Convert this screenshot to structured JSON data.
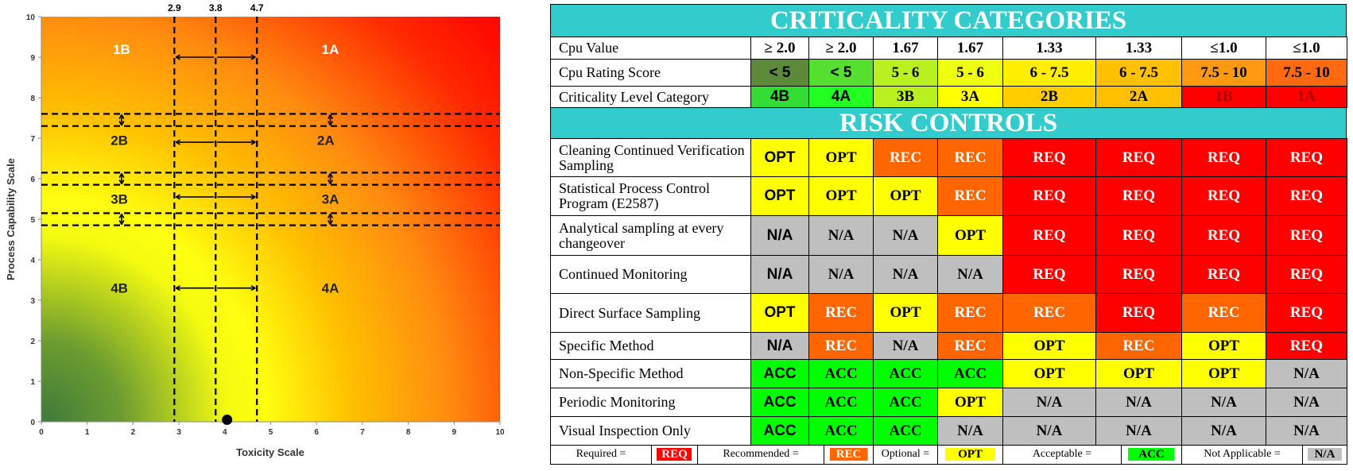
{
  "chart_data": {
    "type": "region",
    "xlabel": "Toxicity Scale",
    "ylabel": "Process Capability Scale",
    "xlim": [
      0,
      10
    ],
    "ylim": [
      0,
      10
    ],
    "xticks": [
      0,
      1,
      2,
      3,
      4,
      5,
      6,
      7,
      8,
      9,
      10
    ],
    "yticks": [
      0,
      1,
      2,
      3,
      4,
      5,
      6,
      7,
      8,
      9,
      10
    ],
    "vlines": [
      2.9,
      3.8,
      4.7
    ],
    "hlines": [
      7.6,
      7.3,
      6.15,
      5.85,
      5.15,
      4.85
    ],
    "regions": [
      "1B",
      "1A",
      "2B",
      "2A",
      "3B",
      "3A",
      "4B",
      "4A"
    ],
    "points": {
      "x": [
        4.05
      ],
      "y": [
        0.05
      ],
      "color": "#000000"
    }
  },
  "table": {
    "title": "CRITICALITY CATEGORIES",
    "header_rows": [
      {
        "label": "Cpu Value",
        "cells": [
          "≥ 2.0",
          "≥ 2.0",
          "1.67",
          "1.67",
          "1.33",
          "1.33",
          "≤1.0",
          "≤1.0"
        ]
      },
      {
        "label": "Cpu Rating Score",
        "cells": [
          "< 5",
          "< 5",
          "5 - 6",
          "5 - 6",
          "6 - 7.5",
          "6 - 7.5",
          "7.5 - 10",
          "7.5 - 10"
        ],
        "colors": [
          "#5c8a3a",
          "#55e030",
          "#b8f020",
          "#f0ff10",
          "#ffee00",
          "#ffc000",
          "#ff9a10",
          "#ff6a10"
        ]
      },
      {
        "label": "Criticality Level Category",
        "cells": [
          "4B",
          "4A",
          "3B",
          "3A",
          "2B",
          "2A",
          "1B",
          "1A"
        ],
        "colors": [
          "#33dd33",
          "#22ff22",
          "#b8f020",
          "#ffff00",
          "#ffcc00",
          "#ffc000",
          "#ff0000",
          "#ff0000"
        ]
      }
    ],
    "section": "RISK CONTROLS",
    "rows": [
      {
        "label": "Cleaning Continued Verification Sampling",
        "cells": [
          "OPT",
          "OPT",
          "REC",
          "REC",
          "REQ",
          "REQ",
          "REQ",
          "REQ"
        ]
      },
      {
        "label": "Statistical Process Control Program (E2587)",
        "cells": [
          "OPT",
          "OPT",
          "OPT",
          "REC",
          "REQ",
          "REQ",
          "REQ",
          "REQ"
        ]
      },
      {
        "label": "Analytical sampling at every changeover",
        "cells": [
          "N/A",
          "N/A",
          "N/A",
          "OPT",
          "REQ",
          "REQ",
          "REQ",
          "REQ"
        ]
      },
      {
        "label": "Continued Monitoring",
        "cells": [
          "N/A",
          "N/A",
          "N/A",
          "N/A",
          "REQ",
          "REQ",
          "REQ",
          "REQ"
        ]
      },
      {
        "label": "Direct Surface Sampling",
        "cells": [
          "OPT",
          "REC",
          "OPT",
          "REC",
          "REC",
          "REQ",
          "REC",
          "REQ"
        ]
      },
      {
        "label": "Specific Method",
        "cells": [
          "N/A",
          "REC",
          "N/A",
          "REC",
          "OPT",
          "REC",
          "OPT",
          "REQ"
        ]
      },
      {
        "label": "Non-Specific Method",
        "cells": [
          "ACC",
          "ACC",
          "ACC",
          "ACC",
          "OPT",
          "OPT",
          "OPT",
          "N/A"
        ]
      },
      {
        "label": "Periodic Monitoring",
        "cells": [
          "ACC",
          "ACC",
          "ACC",
          "OPT",
          "N/A",
          "N/A",
          "N/A",
          "N/A"
        ]
      },
      {
        "label": "Visual Inspection Only",
        "cells": [
          "ACC",
          "ACC",
          "ACC",
          "N/A",
          "N/A",
          "N/A",
          "N/A",
          "N/A"
        ]
      }
    ],
    "legend": [
      {
        "label": "Required =",
        "code": "REQ",
        "color": "#ff0000",
        "text_color": "#ffffff"
      },
      {
        "label": "Recommended =",
        "code": "REC",
        "color": "#ff6600",
        "text_color": "#ffffff"
      },
      {
        "label": "Optional =",
        "code": "OPT",
        "color": "#ffff00",
        "text_color": "#000000"
      },
      {
        "label": "Acceptable =",
        "code": "ACC",
        "color": "#00ff00",
        "text_color": "#000000"
      },
      {
        "label": "Not Applicable =",
        "code": "N/A",
        "color": "#bfbfbf",
        "text_color": "#000000"
      }
    ]
  }
}
